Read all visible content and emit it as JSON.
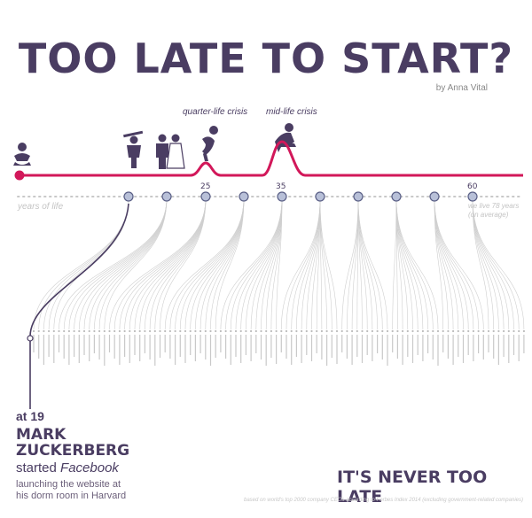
{
  "title": "TOO LATE TO START?",
  "byline": "by Anna Vital",
  "phases": {
    "quarter": "quarter-life crisis",
    "mid": "mid-life crisis"
  },
  "axis": {
    "label": "years of life",
    "ticks": [
      "25",
      "35",
      "60"
    ],
    "average_note": "we live 78 years (on average)"
  },
  "callout": {
    "age": "at 19",
    "name_line1": "MARK",
    "name_line2": "ZUCKERBERG",
    "action_verb": "started",
    "action_object": "Facebook",
    "detail_line1": "launching the website at",
    "detail_line2": "his dorm room in Harvard"
  },
  "closing": "IT'S NEVER TOO LATE",
  "source": "based on world's top 2000 company CEOs according to Forbes Index 2014 (excluding government-related companies)",
  "colors": {
    "timeline": "#d2185a",
    "title": "#4a3d62",
    "dot": "#b8c0d8"
  }
}
